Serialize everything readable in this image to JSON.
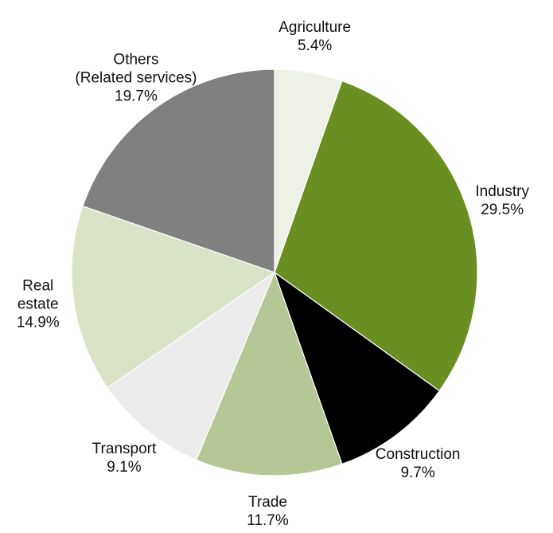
{
  "chart_data": {
    "type": "pie",
    "categories": [
      "Agriculture",
      "Industry",
      "Construction",
      "Trade",
      "Transport",
      "Real\nestate",
      "Others\n(Related services)"
    ],
    "values": [
      5.4,
      29.5,
      9.7,
      11.7,
      9.1,
      14.9,
      19.7
    ],
    "value_labels": [
      "5.4%",
      "29.5%",
      "9.7%",
      "11.7%",
      "9.1%",
      "14.9%",
      "19.7%"
    ],
    "colors": [
      "#eef2e6",
      "#6b8e23",
      "#000000",
      "#b5c795",
      "#ebebeb",
      "#d8e3c8",
      "#808080"
    ]
  }
}
